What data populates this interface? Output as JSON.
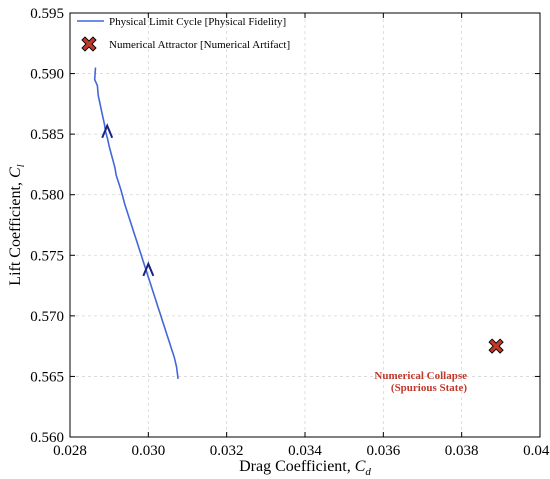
{
  "chart_data": {
    "type": "line",
    "xlabel": "Drag Coefficient, ",
    "xlabel_sub": "d",
    "ylabel": "Lift Coefficient, ",
    "ylabel_sub": "l",
    "ylabel_symbol": "C",
    "xlabel_symbol": "C",
    "xlim": [
      0.028,
      0.04
    ],
    "ylim": [
      0.56,
      0.595
    ],
    "xticks": [
      "0.028",
      "0.030",
      "0.032",
      "0.034",
      "0.036",
      "0.038",
      "0.040"
    ],
    "yticks": [
      "0.560",
      "0.565",
      "0.570",
      "0.575",
      "0.580",
      "0.585",
      "0.590",
      "0.595"
    ],
    "grid": true,
    "legend_position": "top-left",
    "colors": {
      "line": "#4466dd",
      "arrow": "#1a237e",
      "marker_fill": "#c0392b",
      "marker_edge": "#000000",
      "annotation": "#c0392b"
    },
    "series": [
      {
        "name": "Physical Limit Cycle [Physical Fidelity]",
        "kind": "line",
        "x": [
          0.02865,
          0.02863,
          0.0287,
          0.02872,
          0.02876,
          0.0288,
          0.02884,
          0.02888,
          0.02891,
          0.02896,
          0.029,
          0.02905,
          0.0291,
          0.02915,
          0.02918,
          0.02924,
          0.0293,
          0.02935,
          0.0294,
          0.02946,
          0.02952,
          0.02958,
          0.02964,
          0.0297,
          0.02976,
          0.02982,
          0.02988,
          0.02994,
          0.03,
          0.03006,
          0.03012,
          0.03018,
          0.03024,
          0.0303,
          0.03036,
          0.03042,
          0.03048,
          0.03054,
          0.0306,
          0.03066,
          0.03072,
          0.03076
        ],
        "y": [
          0.5905,
          0.5895,
          0.589,
          0.5882,
          0.5876,
          0.587,
          0.5864,
          0.5858,
          0.5852,
          0.5846,
          0.584,
          0.5834,
          0.5828,
          0.5822,
          0.5816,
          0.581,
          0.5804,
          0.5798,
          0.5792,
          0.5786,
          0.578,
          0.5774,
          0.5768,
          0.5762,
          0.5756,
          0.575,
          0.5744,
          0.5738,
          0.5732,
          0.5726,
          0.572,
          0.5714,
          0.5708,
          0.5702,
          0.5696,
          0.569,
          0.5684,
          0.5678,
          0.5672,
          0.5666,
          0.5658,
          0.5648
        ],
        "arrows": [
          {
            "x": 0.02895,
            "y": 0.5852
          },
          {
            "x": 0.03,
            "y": 0.5738
          }
        ]
      },
      {
        "name": "Numerical Attractor [Numerical Artifact]",
        "kind": "marker",
        "x": [
          0.03888
        ],
        "y": [
          0.5675
        ]
      }
    ],
    "annotations": [
      {
        "lines": [
          "Numerical Collapse",
          "(Spurious State)"
        ],
        "x": 0.039,
        "y": 0.565
      }
    ]
  }
}
